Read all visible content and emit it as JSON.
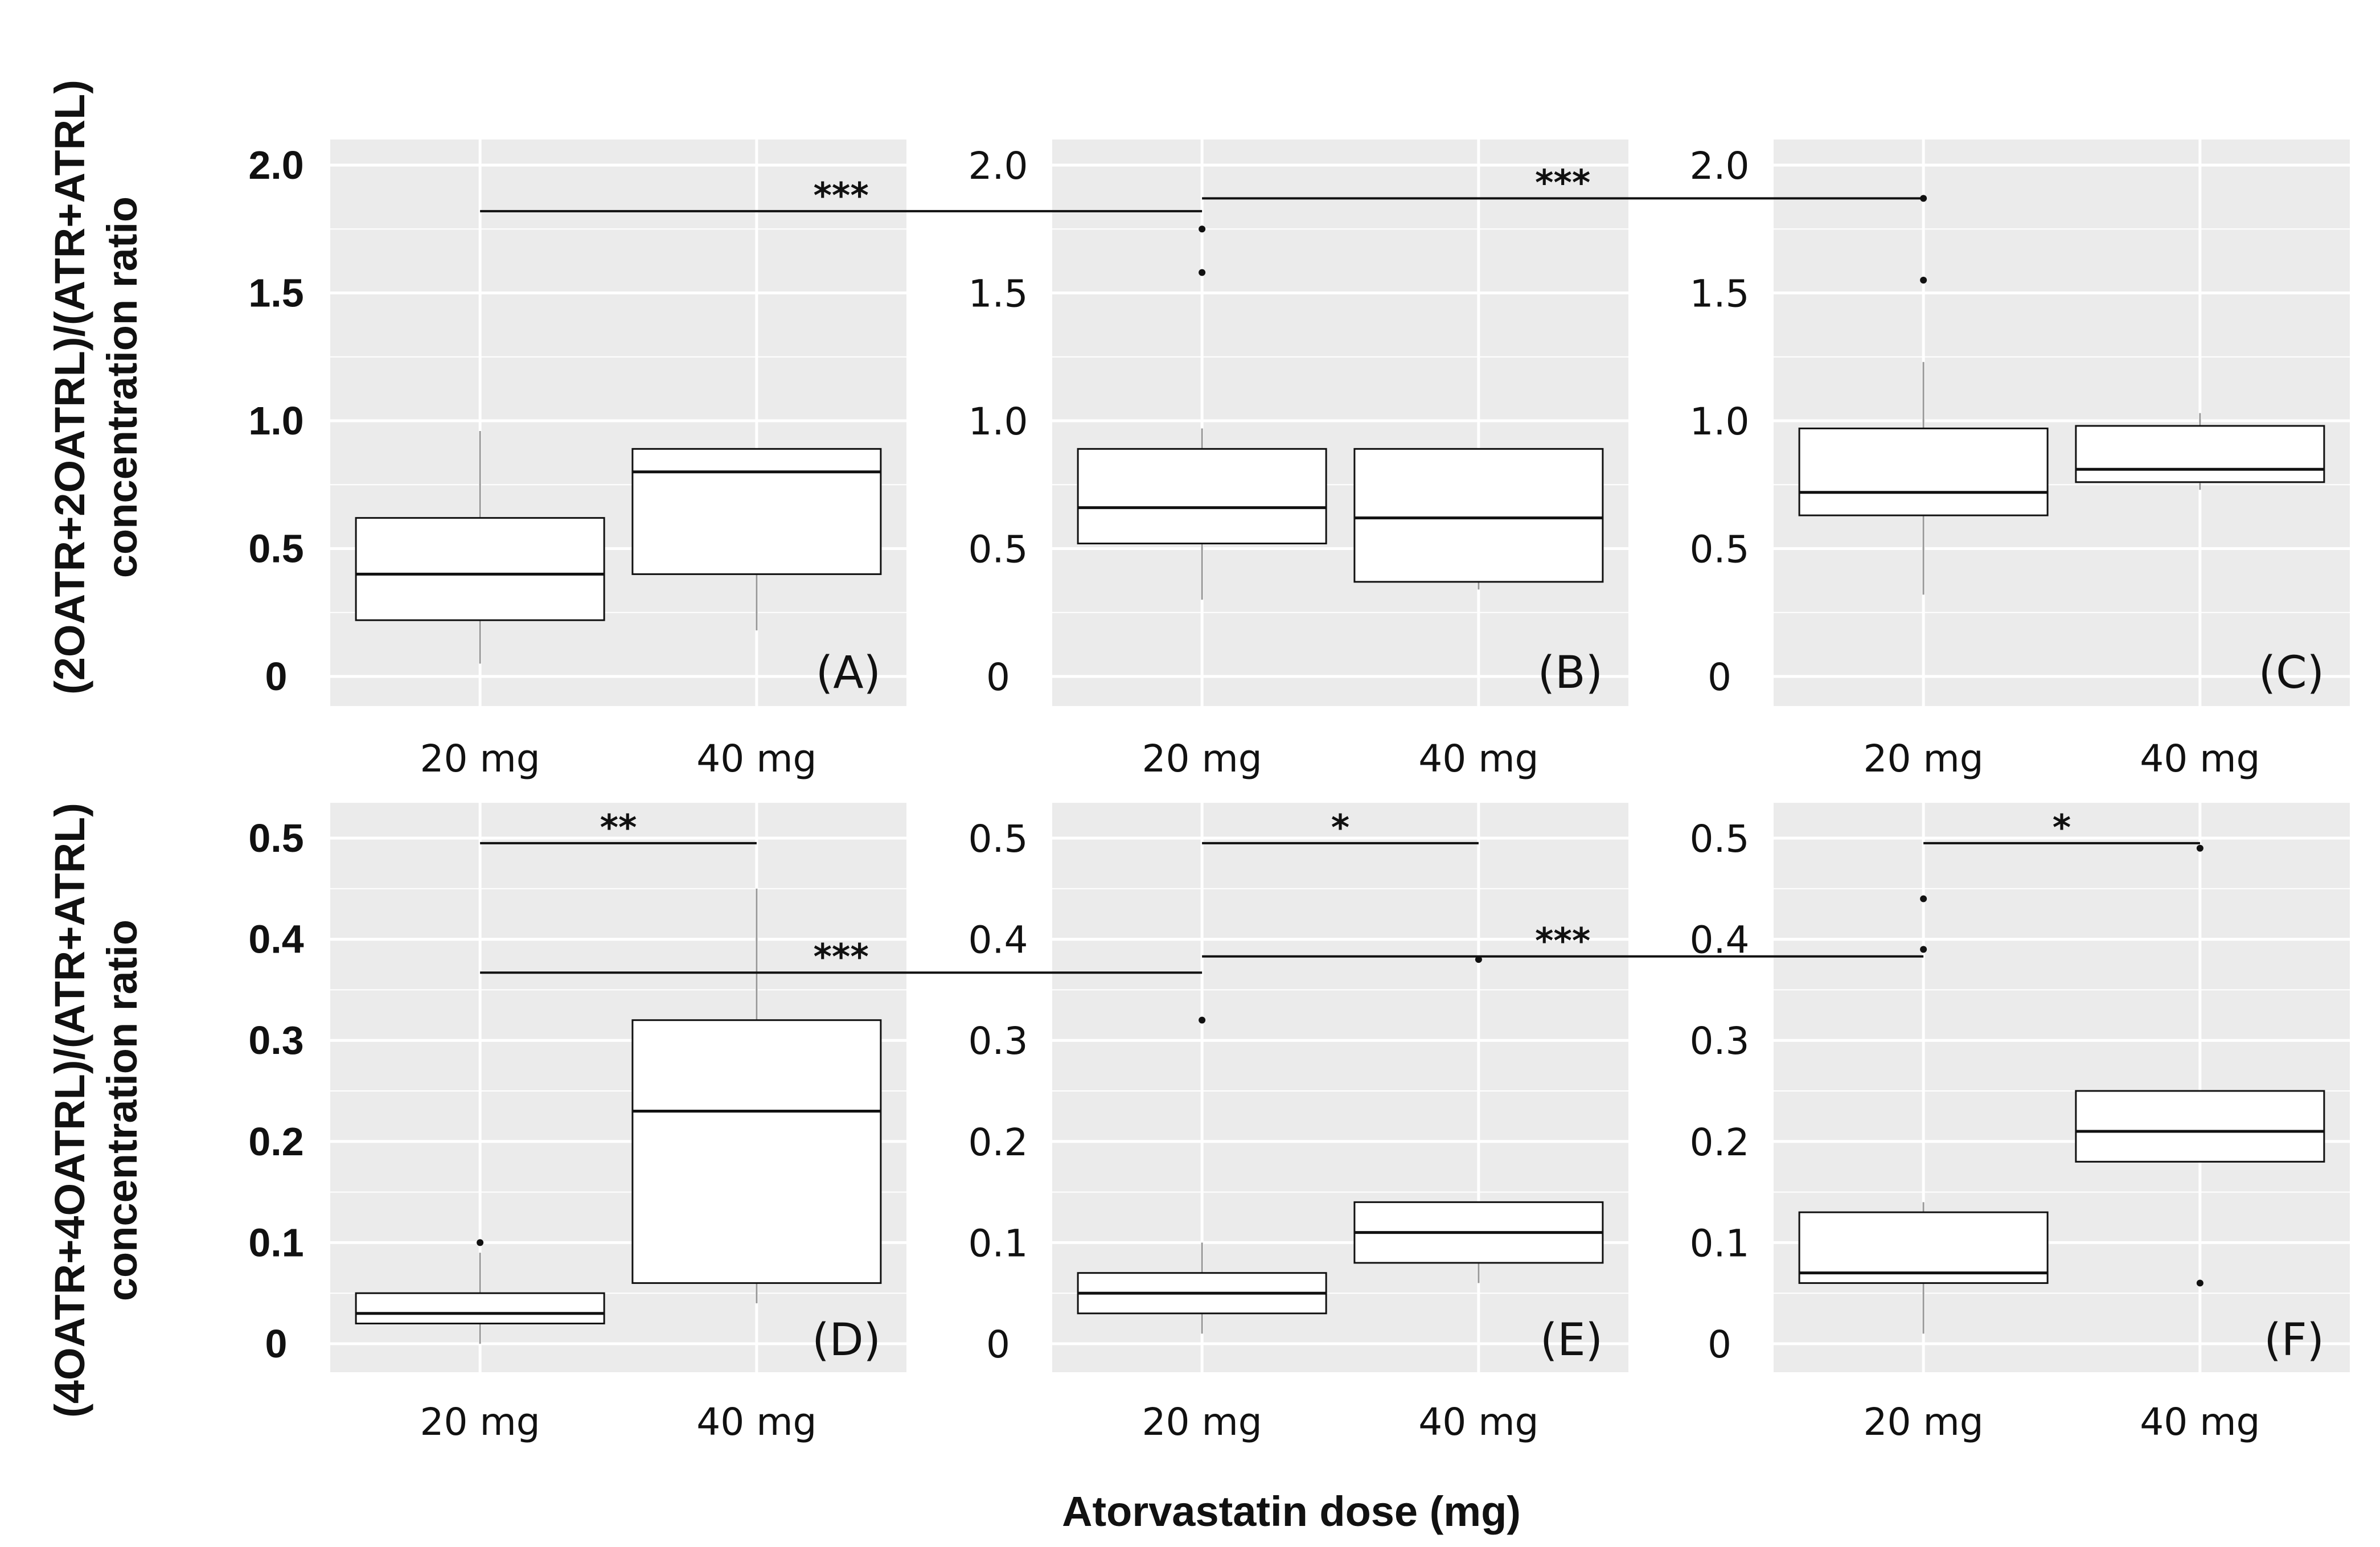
{
  "figure": {
    "xlabel": "Atorvastatin dose (mg)",
    "ylabel_top_line1": "(2OATR+2OATRL)/(ATR+ATRL)",
    "ylabel_top_line2": "concentration ratio",
    "ylabel_bottom_line1": "(4OATR+4OATRL)/(ATR+ATRL)",
    "ylabel_bottom_line2": "concentration ratio"
  },
  "colors": {
    "panel_bg": "#ebebeb",
    "grid": "#ffffff",
    "box_fill": "#ffffff",
    "line": "#111111"
  },
  "chart_data": [
    {
      "type": "box",
      "label": "(A)",
      "row": "top",
      "col": 0,
      "categories": [
        "20 mg",
        "40 mg"
      ],
      "ylim": [
        0,
        2.1
      ],
      "yticks": [
        0,
        0.5,
        1.0,
        1.5,
        2.0
      ],
      "ytick_labels": [
        "0",
        "0.5",
        "1.0",
        "1.5",
        "2.0"
      ],
      "boxes": [
        {
          "category": "20 mg",
          "q1": 0.22,
          "median": 0.4,
          "q3": 0.62,
          "whisker_low": 0.05,
          "whisker_high": 0.96,
          "outliers": []
        },
        {
          "category": "40 mg",
          "q1": 0.4,
          "median": 0.8,
          "q3": 0.89,
          "whisker_low": 0.18,
          "whisker_high": 0.89,
          "outliers": []
        }
      ]
    },
    {
      "type": "box",
      "label": "(B)",
      "row": "top",
      "col": 1,
      "categories": [
        "20 mg",
        "40 mg"
      ],
      "ylim": [
        0,
        2.1
      ],
      "yticks": [
        0,
        0.5,
        1.0,
        1.5,
        2.0
      ],
      "ytick_labels": [
        "0",
        "0.5",
        "1.0",
        "1.5",
        "2.0"
      ],
      "boxes": [
        {
          "category": "20 mg",
          "q1": 0.52,
          "median": 0.66,
          "q3": 0.89,
          "whisker_low": 0.3,
          "whisker_high": 0.97,
          "outliers": [
            1.58,
            1.75
          ]
        },
        {
          "category": "40 mg",
          "q1": 0.37,
          "median": 0.62,
          "q3": 0.89,
          "whisker_low": 0.34,
          "whisker_high": 0.89,
          "outliers": []
        }
      ]
    },
    {
      "type": "box",
      "label": "(C)",
      "row": "top",
      "col": 2,
      "categories": [
        "20 mg",
        "40 mg"
      ],
      "ylim": [
        0,
        2.1
      ],
      "yticks": [
        0,
        0.5,
        1.0,
        1.5,
        2.0
      ],
      "ytick_labels": [
        "0",
        "0.5",
        "1.0",
        "1.5",
        "2.0"
      ],
      "boxes": [
        {
          "category": "20 mg",
          "q1": 0.63,
          "median": 0.72,
          "q3": 0.97,
          "whisker_low": 0.32,
          "whisker_high": 1.23,
          "outliers": [
            1.55,
            1.87
          ]
        },
        {
          "category": "40 mg",
          "q1": 0.76,
          "median": 0.81,
          "q3": 0.98,
          "whisker_low": 0.73,
          "whisker_high": 1.03,
          "outliers": []
        }
      ]
    },
    {
      "type": "box",
      "label": "(D)",
      "row": "bottom",
      "col": 0,
      "categories": [
        "20 mg",
        "40 mg"
      ],
      "ylim": [
        0,
        0.525
      ],
      "yticks": [
        0,
        0.1,
        0.2,
        0.3,
        0.4,
        0.5
      ],
      "ytick_labels": [
        "0",
        "0.1",
        "0.2",
        "0.3",
        "0.4",
        "0.5"
      ],
      "boxes": [
        {
          "category": "20 mg",
          "q1": 0.02,
          "median": 0.03,
          "q3": 0.05,
          "whisker_low": 0.0,
          "whisker_high": 0.09,
          "outliers": [
            0.1
          ]
        },
        {
          "category": "40 mg",
          "q1": 0.06,
          "median": 0.23,
          "q3": 0.32,
          "whisker_low": 0.04,
          "whisker_high": 0.45,
          "outliers": []
        }
      ]
    },
    {
      "type": "box",
      "label": "(E)",
      "row": "bottom",
      "col": 1,
      "categories": [
        "20 mg",
        "40 mg"
      ],
      "ylim": [
        0,
        0.525
      ],
      "yticks": [
        0,
        0.1,
        0.2,
        0.3,
        0.4,
        0.5
      ],
      "ytick_labels": [
        "0",
        "0.1",
        "0.2",
        "0.3",
        "0.4",
        "0.5"
      ],
      "boxes": [
        {
          "category": "20 mg",
          "q1": 0.03,
          "median": 0.05,
          "q3": 0.07,
          "whisker_low": 0.01,
          "whisker_high": 0.1,
          "outliers": [
            0.32
          ]
        },
        {
          "category": "40 mg",
          "q1": 0.08,
          "median": 0.11,
          "q3": 0.14,
          "whisker_low": 0.06,
          "whisker_high": 0.14,
          "outliers": [
            0.38
          ]
        }
      ]
    },
    {
      "type": "box",
      "label": "(F)",
      "row": "bottom",
      "col": 2,
      "categories": [
        "20 mg",
        "40 mg"
      ],
      "ylim": [
        0,
        0.525
      ],
      "yticks": [
        0,
        0.1,
        0.2,
        0.3,
        0.4,
        0.5
      ],
      "ytick_labels": [
        "0",
        "0.1",
        "0.2",
        "0.3",
        "0.4",
        "0.5"
      ],
      "boxes": [
        {
          "category": "20 mg",
          "q1": 0.06,
          "median": 0.07,
          "q3": 0.13,
          "whisker_low": 0.01,
          "whisker_high": 0.14,
          "outliers": [
            0.39,
            0.44
          ]
        },
        {
          "category": "40 mg",
          "q1": 0.18,
          "median": 0.21,
          "q3": 0.25,
          "whisker_low": 0.18,
          "whisker_high": 0.25,
          "outliers": [
            0.06,
            0.49
          ]
        }
      ]
    }
  ],
  "significance": [
    {
      "row": "top",
      "from_col": 0,
      "from_cat": 0,
      "to_col": 1,
      "to_cat": 0,
      "y": 1.82,
      "stars": "***"
    },
    {
      "row": "top",
      "from_col": 1,
      "from_cat": 0,
      "to_col": 2,
      "to_cat": 0,
      "y": 1.87,
      "stars": "***"
    },
    {
      "row": "bottom",
      "from_col": 0,
      "from_cat": 0,
      "to_col": 0,
      "to_cat": 1,
      "y": 0.495,
      "stars": "**"
    },
    {
      "row": "bottom",
      "from_col": 1,
      "from_cat": 0,
      "to_col": 1,
      "to_cat": 1,
      "y": 0.495,
      "stars": "*"
    },
    {
      "row": "bottom",
      "from_col": 2,
      "from_cat": 0,
      "to_col": 2,
      "to_cat": 1,
      "y": 0.495,
      "stars": "*"
    },
    {
      "row": "bottom",
      "from_col": 0,
      "from_cat": 0,
      "to_col": 1,
      "to_cat": 0,
      "y": 0.367,
      "stars": "***"
    },
    {
      "row": "bottom",
      "from_col": 1,
      "from_cat": 0,
      "to_col": 2,
      "to_cat": 0,
      "y": 0.383,
      "stars": "***"
    }
  ]
}
